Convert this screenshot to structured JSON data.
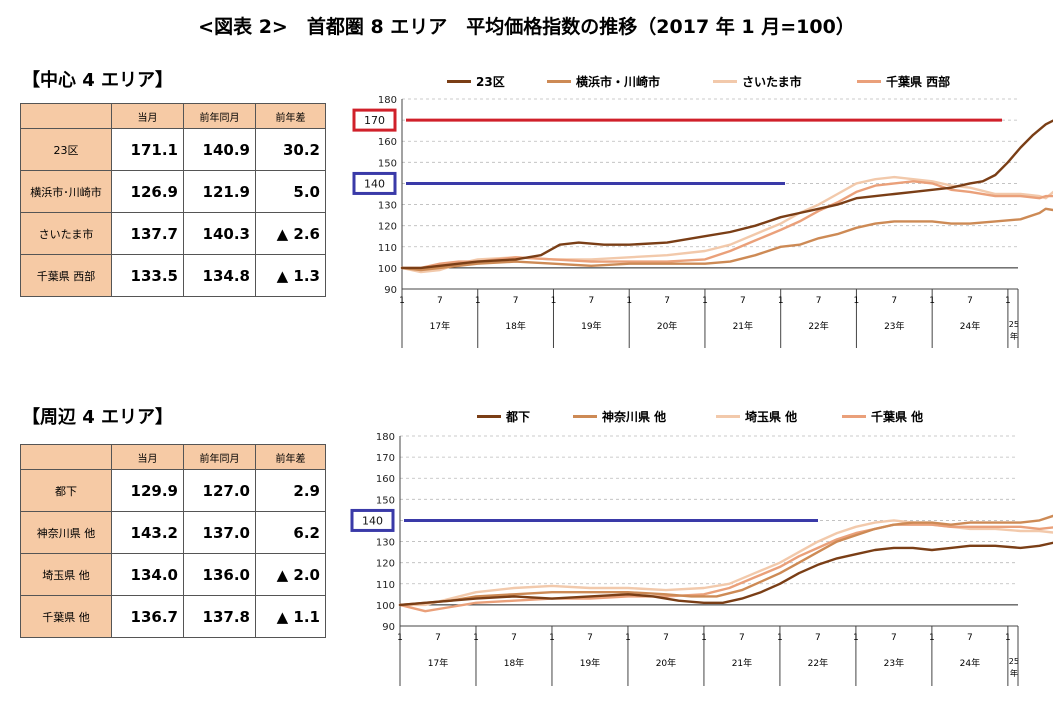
{
  "title": "<図表 2>　首都圏 8 エリア　平均価格指数の推移（2017 年 1 月=100）",
  "center": {
    "heading": "【中心 4 エリア】",
    "table": {
      "headers": [
        "",
        "当月",
        "前年同月",
        "前年差"
      ],
      "rows": [
        {
          "label": "23区",
          "cur": "171.1",
          "prev": "140.9",
          "diff": "30.2"
        },
        {
          "label": "横浜市･川崎市",
          "cur": "126.9",
          "prev": "121.9",
          "diff": "5.0"
        },
        {
          "label": "さいたま市",
          "cur": "137.7",
          "prev": "140.3",
          "diff": "▲ 2.6"
        },
        {
          "label": "千葉県 西部",
          "cur": "133.5",
          "prev": "134.8",
          "diff": "▲ 1.3"
        }
      ]
    }
  },
  "peripheral": {
    "heading": "【周辺 4 エリア】",
    "table": {
      "headers": [
        "",
        "当月",
        "前年同月",
        "前年差"
      ],
      "rows": [
        {
          "label": "都下",
          "cur": "129.9",
          "prev": "127.0",
          "diff": "2.9"
        },
        {
          "label": "神奈川県 他",
          "cur": "143.2",
          "prev": "137.0",
          "diff": "6.2"
        },
        {
          "label": "埼玉県 他",
          "cur": "134.0",
          "prev": "136.0",
          "diff": "▲ 2.0"
        },
        {
          "label": "千葉県 他",
          "cur": "136.7",
          "prev": "137.8",
          "diff": "▲ 1.1"
        }
      ]
    }
  },
  "chart_data": [
    {
      "type": "line",
      "ylim": [
        90,
        180
      ],
      "yticks": [
        90,
        100,
        110,
        120,
        130,
        140,
        150,
        160,
        170,
        180
      ],
      "x_month_labels": [
        "1",
        "7"
      ],
      "x_years": [
        "17年",
        "18年",
        "19年",
        "20年",
        "21年",
        "22年",
        "23年",
        "24年",
        "25年"
      ],
      "legend": [
        "23区",
        "横浜市・川崎市",
        "さいたま市",
        "千葉県 西部"
      ],
      "highlights": [
        {
          "label": "170",
          "value": 170,
          "color": "#d0202a"
        },
        {
          "label": "140",
          "value": 140,
          "color": "#3a3aa8"
        }
      ],
      "series": [
        {
          "name": "23区",
          "color": "#7a3e16",
          "points": [
            [
              0,
              100
            ],
            [
              3,
              100
            ],
            [
              6,
              101
            ],
            [
              9,
              102
            ],
            [
              12,
              103
            ],
            [
              18,
              104
            ],
            [
              22,
              106
            ],
            [
              25,
              111
            ],
            [
              28,
              112
            ],
            [
              32,
              111
            ],
            [
              36,
              111
            ],
            [
              42,
              112
            ],
            [
              48,
              115
            ],
            [
              52,
              117
            ],
            [
              56,
              120
            ],
            [
              60,
              124
            ],
            [
              63,
              126
            ],
            [
              66,
              128
            ],
            [
              69,
              130
            ],
            [
              72,
              133
            ],
            [
              75,
              134
            ],
            [
              78,
              135
            ],
            [
              81,
              136
            ],
            [
              84,
              137
            ],
            [
              87,
              138
            ],
            [
              90,
              140
            ],
            [
              92,
              141
            ],
            [
              94,
              144
            ],
            [
              96,
              150
            ],
            [
              98,
              157
            ],
            [
              100,
              163
            ],
            [
              102,
              168
            ],
            [
              104,
              171
            ]
          ]
        },
        {
          "name": "横浜市・川崎市",
          "color": "#cd8a55",
          "points": [
            [
              0,
              100
            ],
            [
              3,
              99
            ],
            [
              6,
              100
            ],
            [
              9,
              101
            ],
            [
              12,
              102
            ],
            [
              18,
              103
            ],
            [
              24,
              102
            ],
            [
              30,
              101
            ],
            [
              36,
              102
            ],
            [
              42,
              102
            ],
            [
              48,
              102
            ],
            [
              52,
              103
            ],
            [
              56,
              106
            ],
            [
              60,
              110
            ],
            [
              63,
              111
            ],
            [
              66,
              114
            ],
            [
              69,
              116
            ],
            [
              72,
              119
            ],
            [
              75,
              121
            ],
            [
              78,
              122
            ],
            [
              81,
              122
            ],
            [
              84,
              122
            ],
            [
              87,
              121
            ],
            [
              90,
              121
            ],
            [
              94,
              122
            ],
            [
              98,
              123
            ],
            [
              101,
              126
            ],
            [
              102,
              128
            ],
            [
              104,
              127
            ]
          ]
        },
        {
          "name": "さいたま市",
          "color": "#f2c9ab",
          "points": [
            [
              0,
              100
            ],
            [
              3,
              98
            ],
            [
              6,
              99
            ],
            [
              9,
              102
            ],
            [
              12,
              104
            ],
            [
              18,
              105
            ],
            [
              24,
              104
            ],
            [
              30,
              104
            ],
            [
              36,
              105
            ],
            [
              42,
              106
            ],
            [
              48,
              108
            ],
            [
              52,
              111
            ],
            [
              56,
              116
            ],
            [
              60,
              121
            ],
            [
              63,
              126
            ],
            [
              66,
              130
            ],
            [
              69,
              135
            ],
            [
              72,
              140
            ],
            [
              75,
              142
            ],
            [
              78,
              143
            ],
            [
              81,
              142
            ],
            [
              84,
              141
            ],
            [
              87,
              139
            ],
            [
              90,
              138
            ],
            [
              94,
              135
            ],
            [
              98,
              135
            ],
            [
              101,
              134
            ],
            [
              102,
              133
            ],
            [
              104,
              138
            ]
          ]
        },
        {
          "name": "千葉県 西部",
          "color": "#eaa07a",
          "points": [
            [
              0,
              100
            ],
            [
              3,
              100
            ],
            [
              6,
              102
            ],
            [
              9,
              103
            ],
            [
              12,
              103
            ],
            [
              18,
              105
            ],
            [
              24,
              104
            ],
            [
              30,
              103
            ],
            [
              36,
              103
            ],
            [
              42,
              103
            ],
            [
              48,
              104
            ],
            [
              52,
              108
            ],
            [
              56,
              113
            ],
            [
              60,
              118
            ],
            [
              63,
              122
            ],
            [
              66,
              127
            ],
            [
              69,
              131
            ],
            [
              72,
              136
            ],
            [
              75,
              139
            ],
            [
              78,
              140
            ],
            [
              81,
              141
            ],
            [
              84,
              140
            ],
            [
              87,
              137
            ],
            [
              90,
              136
            ],
            [
              94,
              134
            ],
            [
              98,
              134
            ],
            [
              101,
              133
            ],
            [
              102,
              134
            ],
            [
              104,
              134
            ]
          ]
        }
      ]
    },
    {
      "type": "line",
      "ylim": [
        90,
        180
      ],
      "yticks": [
        90,
        100,
        110,
        120,
        130,
        140,
        150,
        160,
        170,
        180
      ],
      "x_month_labels": [
        "1",
        "7"
      ],
      "x_years": [
        "17年",
        "18年",
        "19年",
        "20年",
        "21年",
        "22年",
        "23年",
        "24年",
        "25年"
      ],
      "legend": [
        "都下",
        "神奈川県 他",
        "埼玉県 他",
        "千葉県 他"
      ],
      "highlights": [
        {
          "label": "140",
          "value": 140,
          "color": "#3a3aa8"
        }
      ],
      "series": [
        {
          "name": "都下",
          "color": "#7a3e16",
          "points": [
            [
              0,
              100
            ],
            [
              4,
              101
            ],
            [
              8,
              102
            ],
            [
              12,
              103
            ],
            [
              18,
              104
            ],
            [
              24,
              103
            ],
            [
              30,
              104
            ],
            [
              36,
              105
            ],
            [
              40,
              104
            ],
            [
              44,
              102
            ],
            [
              48,
              101
            ],
            [
              51,
              101
            ],
            [
              54,
              103
            ],
            [
              57,
              106
            ],
            [
              60,
              110
            ],
            [
              63,
              115
            ],
            [
              66,
              119
            ],
            [
              69,
              122
            ],
            [
              72,
              124
            ],
            [
              75,
              126
            ],
            [
              78,
              127
            ],
            [
              81,
              127
            ],
            [
              84,
              126
            ],
            [
              87,
              127
            ],
            [
              90,
              128
            ],
            [
              94,
              128
            ],
            [
              98,
              127
            ],
            [
              101,
              128
            ],
            [
              104,
              130
            ]
          ]
        },
        {
          "name": "神奈川県 他",
          "color": "#cd8a55",
          "points": [
            [
              0,
              100
            ],
            [
              4,
              101
            ],
            [
              8,
              102
            ],
            [
              12,
              104
            ],
            [
              18,
              105
            ],
            [
              24,
              106
            ],
            [
              30,
              106
            ],
            [
              36,
              106
            ],
            [
              42,
              105
            ],
            [
              46,
              104
            ],
            [
              50,
              104
            ],
            [
              54,
              107
            ],
            [
              57,
              111
            ],
            [
              60,
              115
            ],
            [
              63,
              120
            ],
            [
              66,
              125
            ],
            [
              69,
              130
            ],
            [
              72,
              133
            ],
            [
              75,
              136
            ],
            [
              78,
              138
            ],
            [
              81,
              139
            ],
            [
              84,
              139
            ],
            [
              87,
              138
            ],
            [
              90,
              139
            ],
            [
              94,
              139
            ],
            [
              98,
              139
            ],
            [
              101,
              140
            ],
            [
              104,
              143
            ]
          ]
        },
        {
          "name": "埼玉県 他",
          "color": "#f2c9ab",
          "points": [
            [
              0,
              100
            ],
            [
              4,
              100
            ],
            [
              8,
              103
            ],
            [
              12,
              106
            ],
            [
              18,
              108
            ],
            [
              24,
              109
            ],
            [
              30,
              108
            ],
            [
              36,
              108
            ],
            [
              42,
              107
            ],
            [
              48,
              108
            ],
            [
              52,
              110
            ],
            [
              56,
              115
            ],
            [
              60,
              120
            ],
            [
              63,
              125
            ],
            [
              66,
              130
            ],
            [
              69,
              134
            ],
            [
              72,
              137
            ],
            [
              75,
              139
            ],
            [
              78,
              140
            ],
            [
              81,
              139
            ],
            [
              84,
              138
            ],
            [
              87,
              137
            ],
            [
              90,
              136
            ],
            [
              94,
              136
            ],
            [
              98,
              135
            ],
            [
              101,
              135
            ],
            [
              104,
              134
            ]
          ]
        },
        {
          "name": "千葉県 他",
          "color": "#eaa07a",
          "points": [
            [
              0,
              100
            ],
            [
              4,
              97
            ],
            [
              8,
              99
            ],
            [
              12,
              101
            ],
            [
              18,
              102
            ],
            [
              24,
              103
            ],
            [
              30,
              103
            ],
            [
              36,
              104
            ],
            [
              42,
              104
            ],
            [
              48,
              105
            ],
            [
              52,
              108
            ],
            [
              56,
              113
            ],
            [
              60,
              118
            ],
            [
              63,
              123
            ],
            [
              66,
              127
            ],
            [
              69,
              131
            ],
            [
              72,
              134
            ],
            [
              75,
              136
            ],
            [
              78,
              138
            ],
            [
              81,
              138
            ],
            [
              84,
              138
            ],
            [
              87,
              137
            ],
            [
              90,
              137
            ],
            [
              94,
              137
            ],
            [
              98,
              137
            ],
            [
              101,
              136
            ],
            [
              104,
              137
            ]
          ]
        }
      ]
    }
  ]
}
